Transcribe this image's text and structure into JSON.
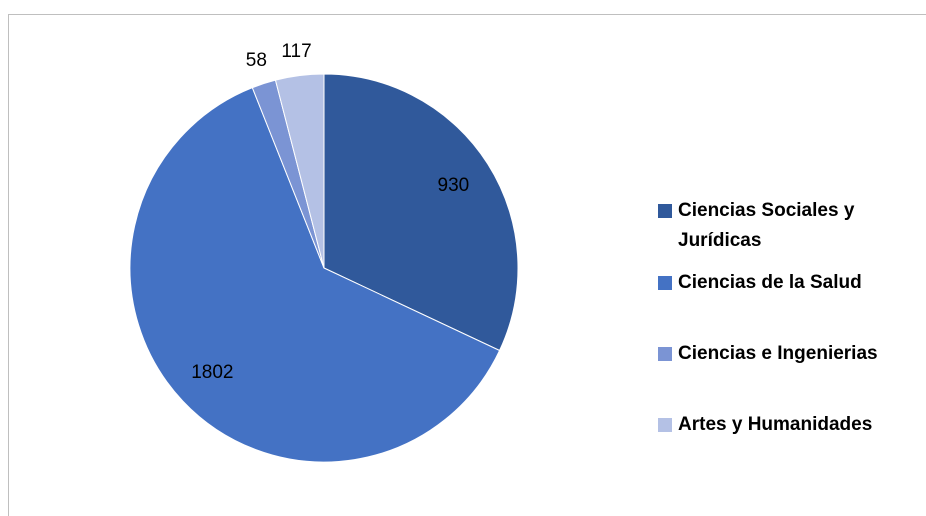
{
  "chart_data": {
    "type": "pie",
    "categories": [
      "Ciencias Sociales y Jurídicas",
      "Ciencias de la Salud",
      "Ciencias e Ingenierias",
      "Artes y Humanidades"
    ],
    "values": [
      930,
      1802,
      58,
      117
    ],
    "colors": [
      "#30599b",
      "#4472c4",
      "#7b94d4",
      "#b4c1e5"
    ],
    "legend": "right"
  }
}
